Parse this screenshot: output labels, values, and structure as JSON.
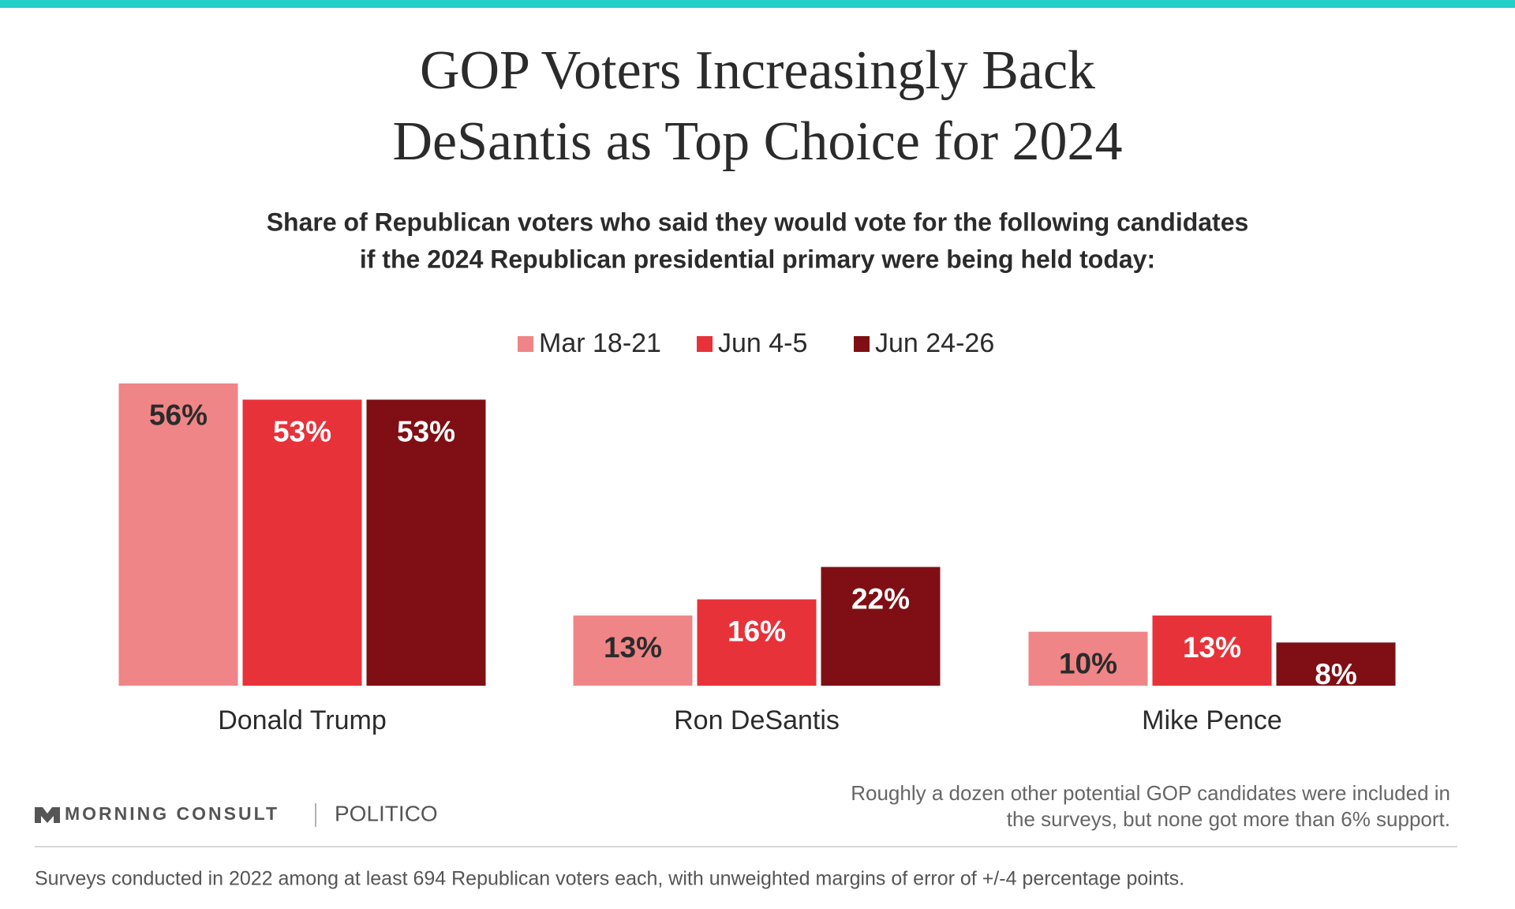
{
  "chart_data": {
    "type": "bar",
    "title": [
      "GOP Voters Increasingly Back",
      "DeSantis as Top Choice for 2024"
    ],
    "subtitle": [
      "Share of Republican voters who said they would vote for the following candidates",
      "if the 2024 Republican presidential primary were being held today:"
    ],
    "categories": [
      "Donald Trump",
      "Ron DeSantis",
      "Mike Pence"
    ],
    "series": [
      {
        "name": "Mar 18-21",
        "color": "#ef8587",
        "values": [
          56,
          13,
          10
        ],
        "value_labels": [
          "56%",
          "13%",
          "10%"
        ]
      },
      {
        "name": "Jun 4-5",
        "color": "#e8323a",
        "values": [
          53,
          16,
          13
        ],
        "value_labels": [
          "53%",
          "16%",
          "13%"
        ]
      },
      {
        "name": "Jun 24-26",
        "color": "#7f0f14",
        "values": [
          53,
          22,
          8
        ],
        "value_labels": [
          "53%",
          "22%",
          "8%"
        ]
      }
    ],
    "legend": "top",
    "brand": [
      "MORNING CONSULT",
      "POLITICO"
    ],
    "note": [
      "Roughly a dozen other potential GOP candidates were included in",
      "the surveys, but none got more than 6% support."
    ],
    "source": "Surveys conducted in 2022 among at least 694 Republican voters each, with unweighted margins of error of +/-4 percentage points."
  }
}
